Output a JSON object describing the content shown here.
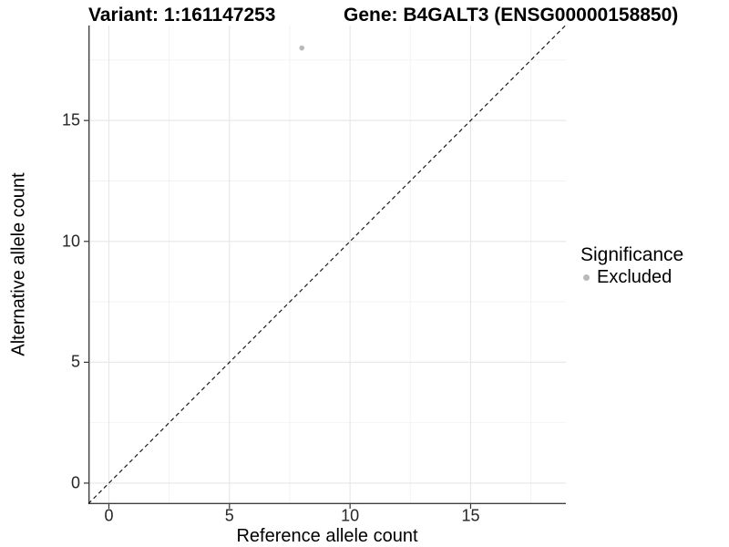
{
  "titles": {
    "variant": "Variant: 1:161147253",
    "gene": "Gene: B4GALT3 (ENSG00000158850)"
  },
  "legend": {
    "title": "Significance",
    "items": [
      {
        "label": "Excluded",
        "marker_color": "#b9b9b9"
      }
    ]
  },
  "chart_data": {
    "type": "scatter",
    "title": "Variant: 1:161147253 — Gene: B4GALT3 (ENSG00000158850)",
    "xlabel": "Reference allele count",
    "ylabel": "Alternative allele count",
    "xlim": [
      -0.85,
      18.95
    ],
    "ylim": [
      -0.87,
      18.93
    ],
    "x_major_ticks": [
      0,
      5,
      10,
      15
    ],
    "y_major_ticks": [
      0,
      5,
      10,
      15
    ],
    "x_minor_ticks": [
      2.5,
      7.5,
      12.5,
      17.5
    ],
    "y_minor_ticks": [
      2.5,
      7.5,
      12.5,
      17.5
    ],
    "grid": "major and minor gridlines, very light gray, on white panel",
    "legend_position": "right",
    "series": [
      {
        "name": "Excluded",
        "color": "#b9b9b9",
        "points": [
          {
            "x": 8,
            "y": 18
          }
        ]
      }
    ],
    "reference_line": {
      "kind": "identity y = x",
      "style": "dashed",
      "color": "#1a1a1a"
    }
  },
  "colors": {
    "background": "#ffffff",
    "axis_line": "#404040",
    "tick_mark": "#333333",
    "grid_major": "#e6e6e6",
    "grid_minor": "#f2f2f2",
    "point_excluded": "#b9b9b9",
    "dashed_line": "#1a1a1a",
    "title_text": "#000000",
    "tick_text": "#262626"
  }
}
